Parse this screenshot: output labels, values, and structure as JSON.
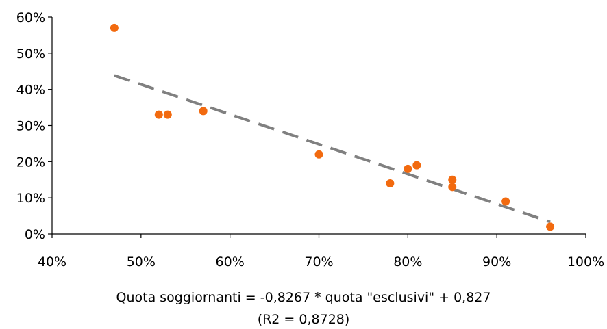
{
  "chart_data": {
    "type": "scatter",
    "title": "",
    "xlabel": "",
    "ylabel": "",
    "xlim": [
      0.4,
      1.0
    ],
    "ylim": [
      0.0,
      0.6
    ],
    "x_ticks": [
      0.4,
      0.5,
      0.6,
      0.7,
      0.8,
      0.9,
      1.0
    ],
    "x_tick_labels": [
      "40%",
      "50%",
      "60%",
      "70%",
      "80%",
      "90%",
      "100%"
    ],
    "y_ticks": [
      0.0,
      0.1,
      0.2,
      0.3,
      0.4,
      0.5,
      0.6
    ],
    "y_tick_labels": [
      "0%",
      "10%",
      "20%",
      "30%",
      "40%",
      "50%",
      "60%"
    ],
    "grid": false,
    "legend": "none",
    "point_color": "#f26a0f",
    "trend_color": "#808080",
    "points": [
      {
        "x": 0.47,
        "y": 0.57
      },
      {
        "x": 0.52,
        "y": 0.33
      },
      {
        "x": 0.53,
        "y": 0.33
      },
      {
        "x": 0.57,
        "y": 0.34
      },
      {
        "x": 0.7,
        "y": 0.22
      },
      {
        "x": 0.78,
        "y": 0.14
      },
      {
        "x": 0.8,
        "y": 0.18
      },
      {
        "x": 0.81,
        "y": 0.19
      },
      {
        "x": 0.85,
        "y": 0.15
      },
      {
        "x": 0.85,
        "y": 0.13
      },
      {
        "x": 0.91,
        "y": 0.09
      },
      {
        "x": 0.96,
        "y": 0.02
      }
    ],
    "trendline": {
      "slope": -0.8267,
      "intercept": 0.827,
      "x_from": 0.47,
      "x_to": 0.96,
      "style": "dashed"
    },
    "equation_text": "Quota soggiornanti = -0,8267 * quota \"esclusivi\" + 0,827",
    "r2_text": "(R2 = 0,8728)"
  }
}
